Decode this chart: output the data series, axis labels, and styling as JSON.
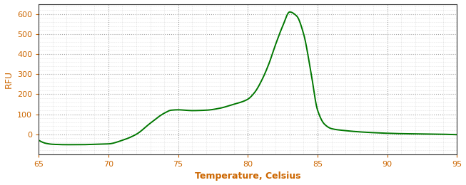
{
  "xlabel": "Temperature, Celsius",
  "ylabel": "RFU",
  "xlim": [
    65,
    95
  ],
  "ylim": [
    -100,
    650
  ],
  "yticks": [
    0,
    100,
    200,
    300,
    400,
    500,
    600
  ],
  "xticks": [
    65,
    70,
    75,
    80,
    85,
    90,
    95
  ],
  "line_color": "#007700",
  "line_width": 1.4,
  "bg_color": "#ffffff",
  "grid_color": "#999999",
  "axis_label_color": "#cc6600",
  "tick_color": "#cc6600",
  "tick_label_color": "#cc6600",
  "spine_color": "#333333",
  "curve_points_x": [
    65.0,
    65.5,
    66.0,
    67.0,
    68.0,
    69.0,
    70.0,
    71.0,
    72.0,
    73.0,
    74.0,
    74.5,
    75.0,
    75.5,
    76.0,
    77.0,
    78.0,
    79.0,
    79.5,
    80.0,
    80.5,
    81.0,
    81.5,
    82.0,
    82.5,
    83.0,
    83.5,
    84.0,
    84.5,
    85.0,
    85.5,
    86.0,
    87.0,
    88.0,
    89.0,
    90.0,
    91.0,
    92.0,
    93.0,
    94.0,
    95.0
  ],
  "curve_points_y": [
    -30,
    -45,
    -50,
    -52,
    -52,
    -50,
    -48,
    -30,
    0,
    55,
    105,
    120,
    122,
    120,
    118,
    120,
    130,
    150,
    160,
    175,
    210,
    270,
    350,
    450,
    540,
    610,
    590,
    500,
    320,
    120,
    50,
    28,
    18,
    12,
    8,
    5,
    3,
    2,
    1,
    0,
    -2
  ]
}
